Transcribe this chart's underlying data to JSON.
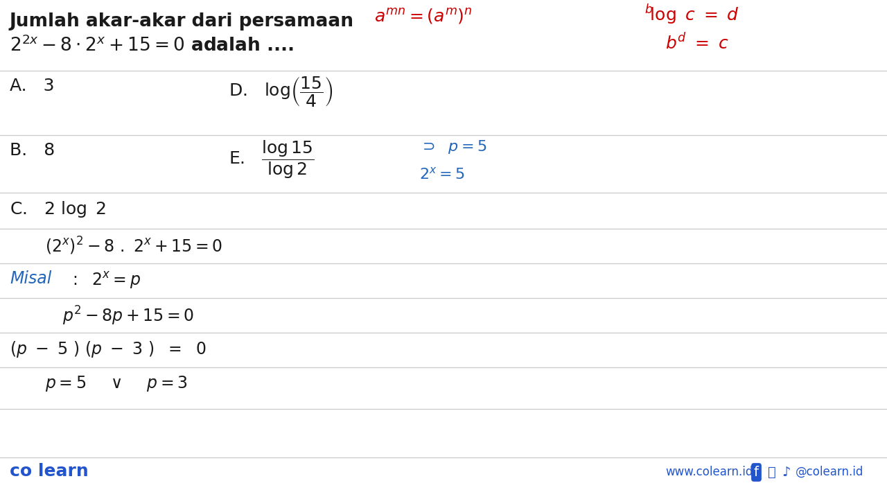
{
  "bg_color": "#ffffff",
  "text_color": "#1a1a1a",
  "red_color": "#cc0000",
  "blue_color": "#2266bb",
  "footer_color": "#2255cc",
  "line_color": "#cccccc",
  "title_line1": "Jumlah akar-akar dari persamaan",
  "title_line2_math": "2^{2x} - 8 \\cdot 2^x + 15 = 0 adalah ....",
  "opt_A": "A.   3",
  "opt_B": "B.   8",
  "opt_C_math": "C.   2 log 2",
  "opt_D_math": "D.   $\\log\\!\\left(\\dfrac{15}{4}\\right)$",
  "opt_E_math": "E.   $\\dfrac{\\log 15}{\\log 2}$",
  "red1": "$a^{mn} = (a^m)^n$",
  "red2": "$^b\\!\\log\\ c = d$",
  "red3": "$b^d = c$",
  "blue1": "$\\supset\\ \\ p = 5$",
  "blue2": "$2^x = 5$",
  "sol1": "$(2^x)^2 - 8\\ .\\ 2^x + 15 = 0$",
  "sol2_blue": "Misal",
  "sol2_rest": "$:\\ \\ 2^x = p$",
  "sol3": "$p^2 - 8p + 15 = 0$",
  "sol4": "$(p - 5)\\ (p - 3)\\ \\ = \\ \\ 0$",
  "sol5": "$p = 5\\ \\ \\ \\vee\\ \\ \\ p = 3$",
  "footer_left": "co learn",
  "footer_right": "www.colearn.id",
  "footer_social": "   @colearn.id"
}
